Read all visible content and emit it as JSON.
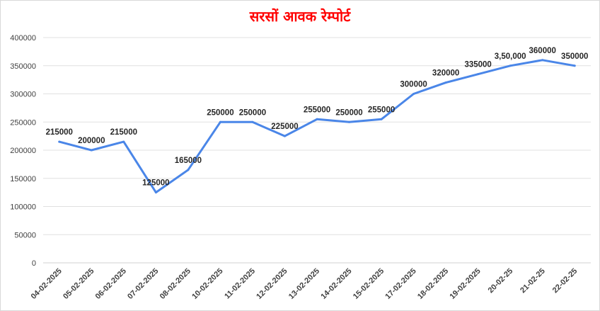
{
  "chart_data": {
    "type": "line",
    "title": "सरसों आवक रेम्पोर्ट",
    "xlabel": "",
    "ylabel": "",
    "ylim": [
      0,
      400000
    ],
    "yticks": [
      "0",
      "50000",
      "100000",
      "150000",
      "200000",
      "250000",
      "300000",
      "350000",
      "400000"
    ],
    "grid": true,
    "legend": "none",
    "line_color": "#4a86e8",
    "categories": [
      "04-02-2025",
      "05-02-2025",
      "06-02-2025",
      "07-02-2025",
      "08-02-2025",
      "10-02-2025",
      "11-02-2025",
      "12-02-2025",
      "13-02-2025",
      "14-02-2025",
      "15-02-2025",
      "17-02-2025",
      "18-02-2025",
      "19-02-2025",
      "20-02-25",
      "21-02-25",
      "22-02-25"
    ],
    "values": [
      215000,
      200000,
      215000,
      125000,
      165000,
      250000,
      250000,
      225000,
      255000,
      250000,
      255000,
      300000,
      320000,
      335000,
      350000,
      360000,
      350000
    ],
    "data_labels": [
      "215000",
      "200000",
      "215000",
      "125000",
      "165000",
      "250000",
      "250000",
      "225000",
      "255000",
      "250000",
      "255000",
      "300000",
      "320000",
      "335000",
      "3,50,000",
      "360000",
      "350000"
    ]
  }
}
